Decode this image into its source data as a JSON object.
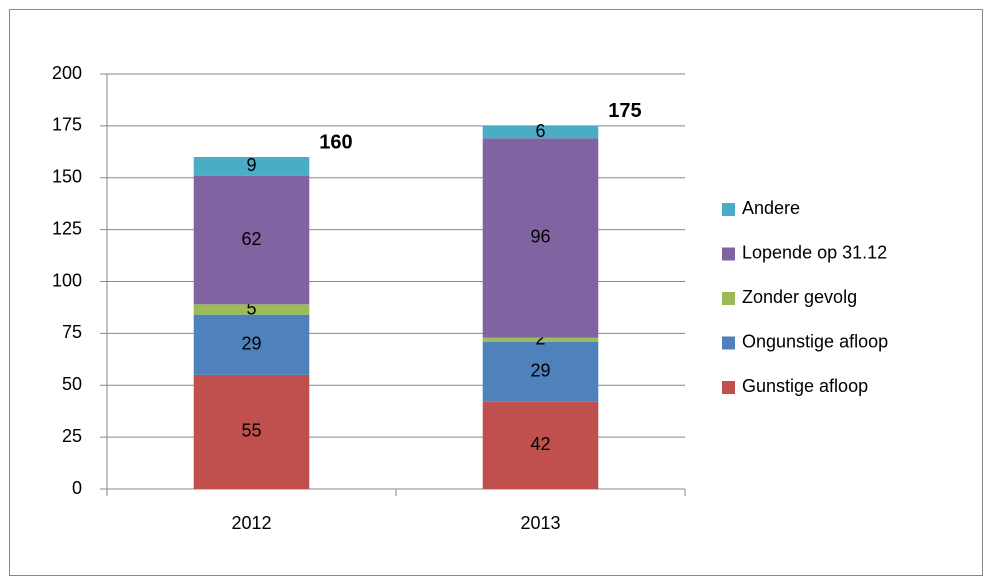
{
  "chart_data": {
    "type": "stacked_bar",
    "categories": [
      "2012",
      "2013"
    ],
    "series": [
      {
        "name": "Gunstige afloop",
        "color": "#c0504d",
        "values": [
          55,
          42
        ]
      },
      {
        "name": "Ongunstige afloop",
        "color": "#4f81bd",
        "values": [
          29,
          29
        ]
      },
      {
        "name": "Zonder gevolg",
        "color": "#9bbb59",
        "values": [
          5,
          2
        ]
      },
      {
        "name": "Lopende op 31.12",
        "color": "#8064a2",
        "values": [
          62,
          96
        ]
      },
      {
        "name": "Andere",
        "color": "#4bacc6",
        "values": [
          9,
          6
        ]
      }
    ],
    "totals": [
      160,
      175
    ],
    "ylim": [
      0,
      200
    ],
    "yticks": [
      0,
      25,
      50,
      75,
      100,
      125,
      150,
      175,
      200
    ],
    "grid": true,
    "legend": "right"
  }
}
